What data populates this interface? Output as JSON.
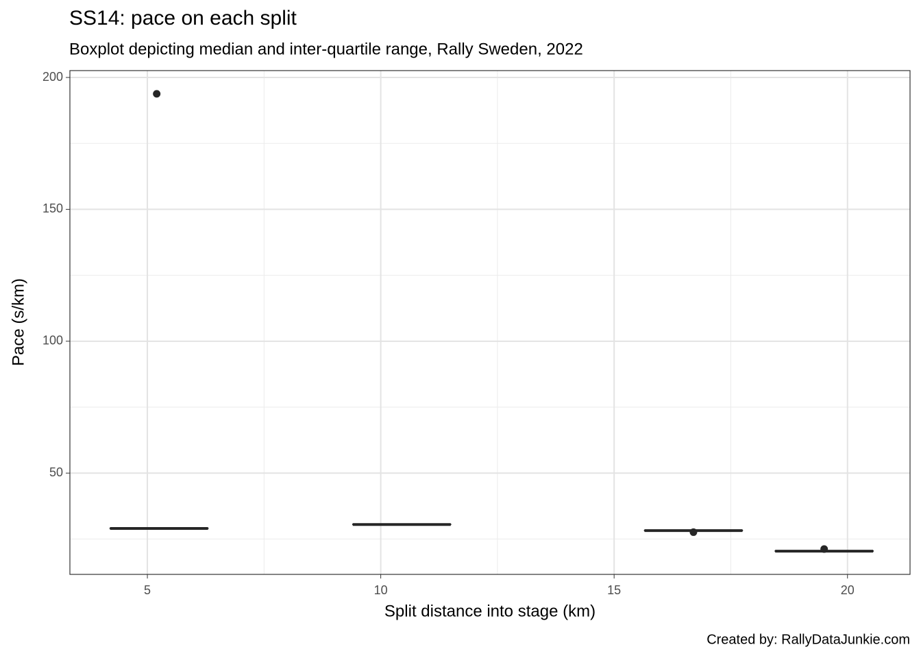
{
  "chart_data": {
    "type": "boxplot",
    "title": "SS14: pace on each split",
    "subtitle": "Boxplot depicting median and inter-quartile range, Rally Sweden, 2022",
    "x_label": "Split distance into stage (km)",
    "y_label": "Pace (s/km)",
    "caption": "Created by: RallyDataJunkie.com",
    "xlim": [
      3.34,
      21.34
    ],
    "xticks": [
      5,
      10,
      15,
      20
    ],
    "xminor": [
      7.5,
      12.5,
      17.5
    ],
    "ylim": [
      11.6,
      202.6
    ],
    "yticks": [
      50,
      100,
      150,
      200
    ],
    "yminor": [
      25,
      75,
      125,
      175
    ],
    "grid": true,
    "color": "#262626",
    "boxes": [
      {
        "x": 5.25,
        "lower": 28.9,
        "q1": 29.0,
        "median": 29.0,
        "q3": 29.1,
        "upper": 29.2,
        "outliers": [
          193.8
        ],
        "outlier_x": [
          5.2
        ]
      },
      {
        "x": 10.45,
        "lower": 30.4,
        "q1": 30.5,
        "median": 30.5,
        "q3": 30.6,
        "upper": 30.7,
        "outliers": [],
        "outlier_x": []
      },
      {
        "x": 16.7,
        "lower": 28.1,
        "q1": 28.2,
        "median": 28.2,
        "q3": 28.3,
        "upper": 28.4,
        "outliers": [
          27.6
        ],
        "outlier_x": [
          16.7
        ]
      },
      {
        "x": 19.5,
        "lower": 20.3,
        "q1": 20.4,
        "median": 20.4,
        "q3": 20.5,
        "upper": 20.6,
        "outliers": [
          21.2
        ],
        "outlier_x": [
          19.5
        ]
      }
    ]
  }
}
